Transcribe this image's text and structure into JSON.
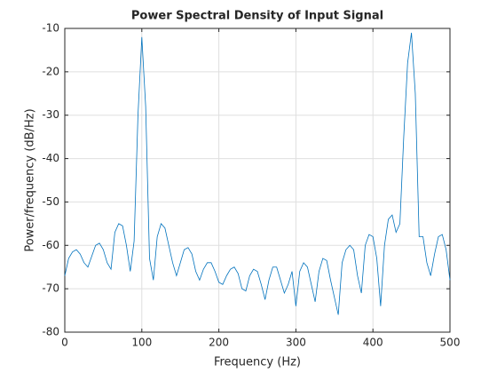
{
  "chart_data": {
    "type": "line",
    "title": "Power Spectral Density of Input Signal",
    "xlabel": "Frequency (Hz)",
    "ylabel": "Power/frequency (dB/Hz)",
    "x": [
      0,
      5,
      10,
      15,
      20,
      25,
      30,
      35,
      40,
      45,
      50,
      55,
      60,
      65,
      70,
      75,
      80,
      85,
      90,
      95,
      100,
      105,
      110,
      115,
      120,
      125,
      130,
      135,
      140,
      145,
      150,
      155,
      160,
      165,
      170,
      175,
      180,
      185,
      190,
      195,
      200,
      205,
      210,
      215,
      220,
      225,
      230,
      235,
      240,
      245,
      250,
      255,
      260,
      265,
      270,
      275,
      280,
      285,
      290,
      295,
      300,
      305,
      310,
      315,
      320,
      325,
      330,
      335,
      340,
      345,
      350,
      355,
      360,
      365,
      370,
      375,
      380,
      385,
      390,
      395,
      400,
      405,
      410,
      415,
      420,
      425,
      430,
      435,
      440,
      445,
      450,
      455,
      460,
      465,
      470,
      475,
      480,
      485,
      490,
      495,
      500
    ],
    "series": [
      {
        "color": "#0072bd",
        "values": [
          -67,
          -63,
          -61.5,
          -61,
          -62,
          -64,
          -65,
          -62.5,
          -60,
          -59.5,
          -61,
          -64,
          -65.5,
          -57,
          -55,
          -55.5,
          -60,
          -66,
          -59,
          -30,
          -12,
          -28,
          -63,
          -68,
          -58,
          -55,
          -56,
          -60,
          -64,
          -67,
          -64,
          -61,
          -60.5,
          -62,
          -66,
          -68,
          -65.5,
          -64,
          -64,
          -66,
          -68.5,
          -69,
          -67,
          -65.5,
          -65,
          -66.5,
          -70,
          -70.5,
          -67,
          -65.5,
          -66,
          -69,
          -72.5,
          -68,
          -65,
          -65,
          -68,
          -71,
          -69,
          -66,
          -74,
          -66,
          -64,
          -65,
          -69,
          -73,
          -66,
          -63,
          -63.5,
          -68,
          -72,
          -76,
          -64,
          -61,
          -60,
          -61,
          -67,
          -71,
          -60,
          -57.5,
          -58,
          -63,
          -74,
          -60,
          -54,
          -53,
          -57,
          -55,
          -35,
          -18,
          -11,
          -25,
          -58,
          -58,
          -64,
          -67,
          -62,
          -58,
          -57.5,
          -61,
          -68
        ]
      }
    ],
    "xlim": [
      0,
      500
    ],
    "xticks": [
      0,
      100,
      200,
      300,
      400,
      500
    ],
    "ylim": [
      -80,
      -10
    ],
    "yticks": [
      -80,
      -70,
      -60,
      -50,
      -40,
      -30,
      -20,
      -10
    ],
    "grid": true
  }
}
